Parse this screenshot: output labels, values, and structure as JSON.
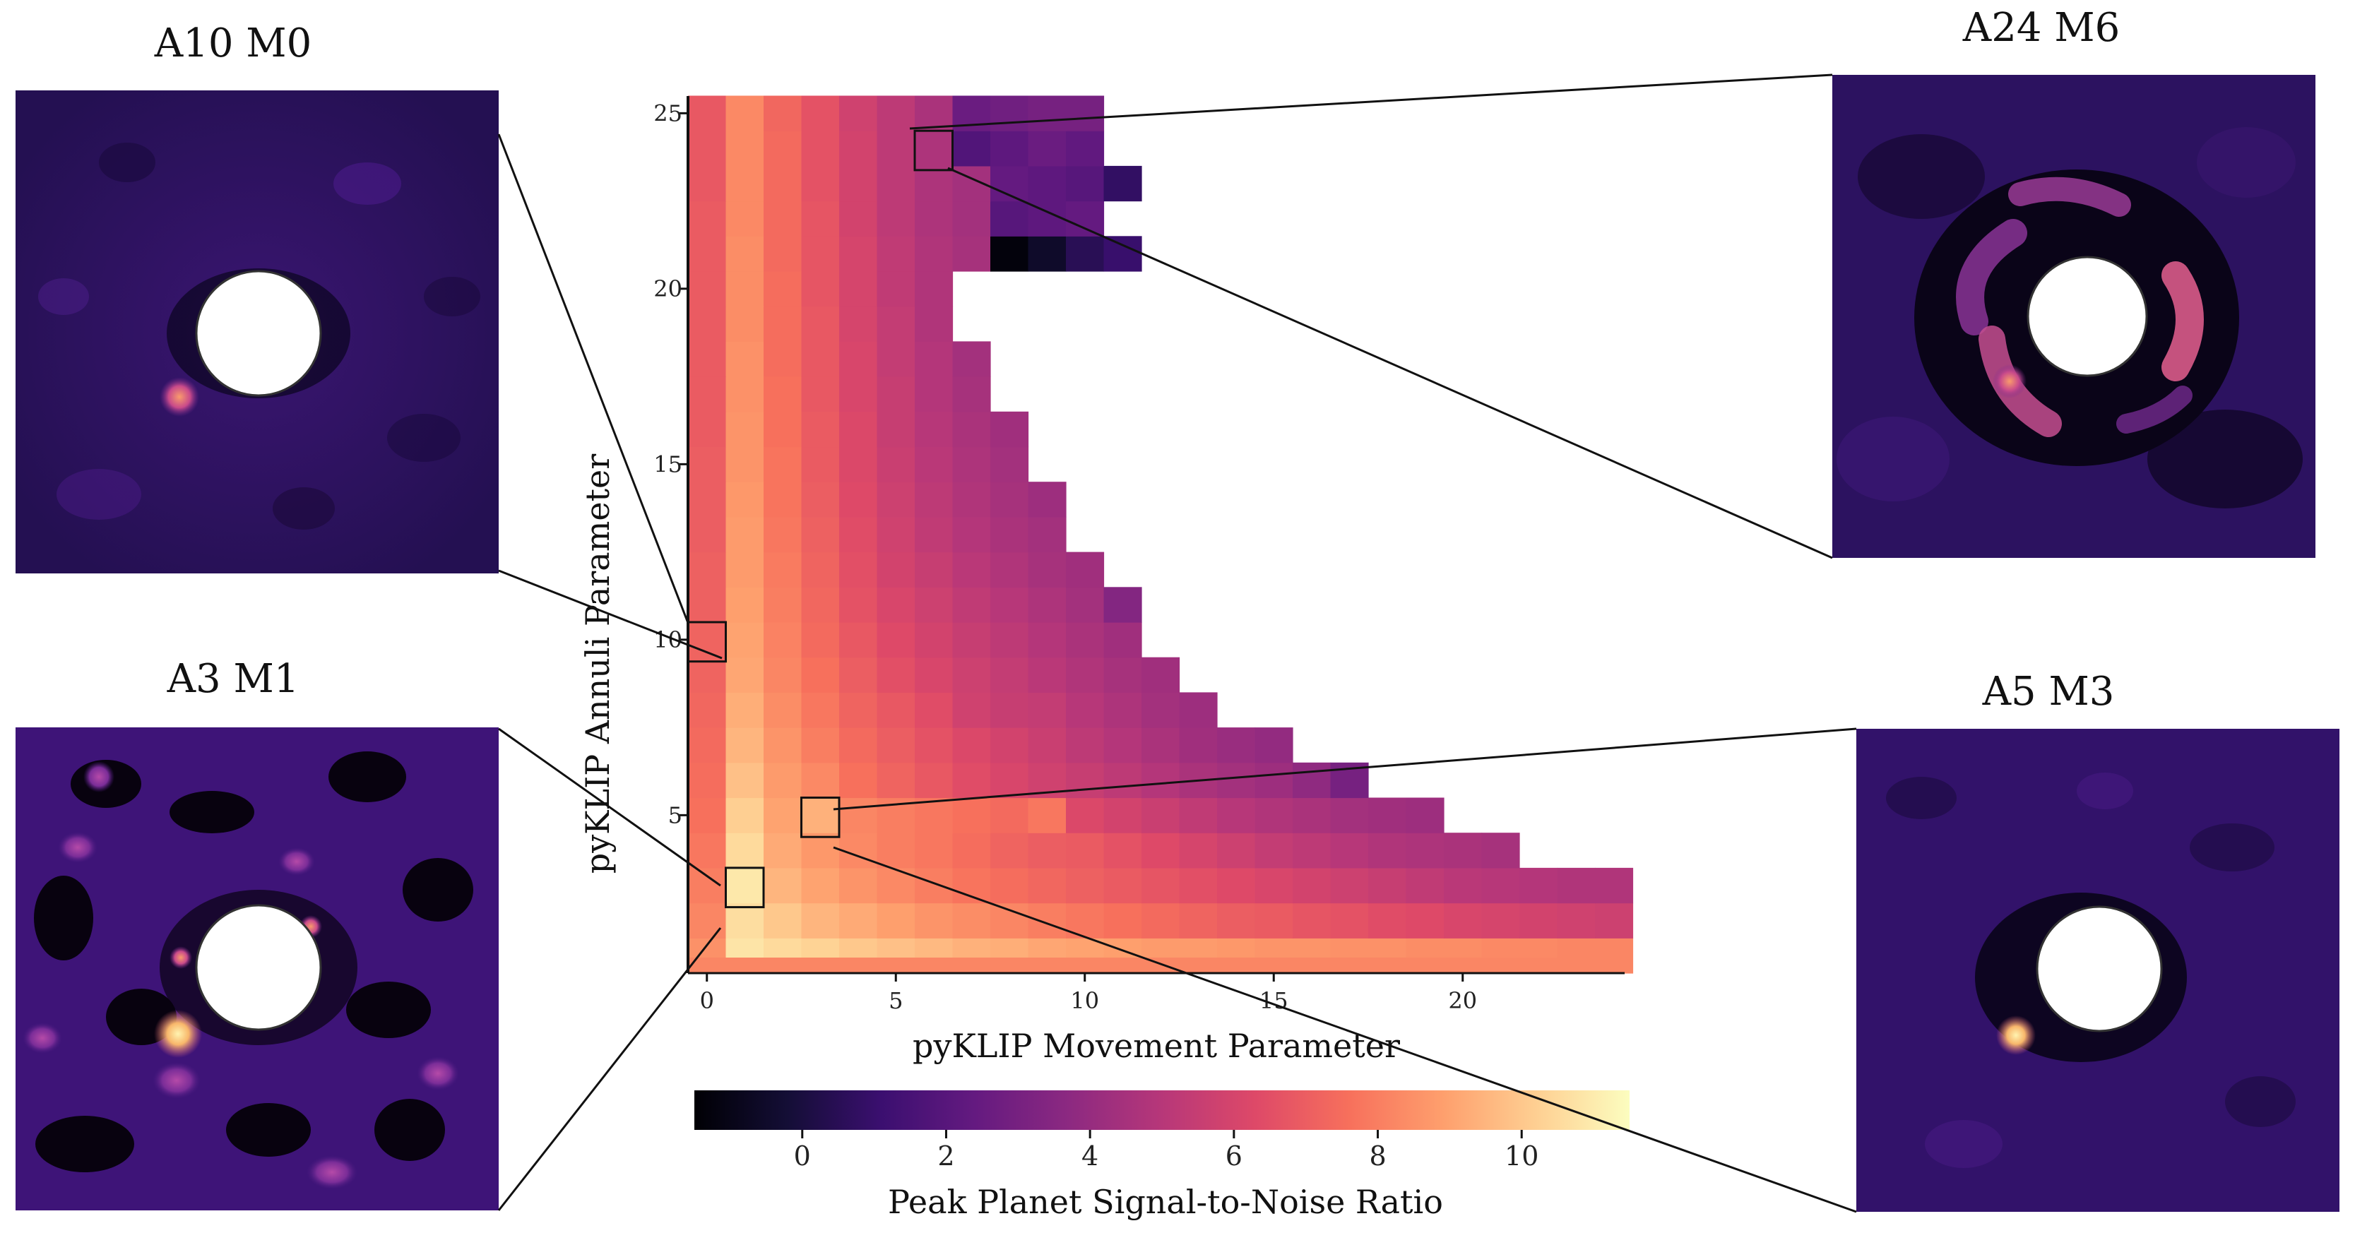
{
  "chart_data": {
    "type": "heatmap",
    "title": "",
    "xlabel": "pyKLIP Movement Parameter",
    "ylabel": "pyKLIP Annuli Parameter",
    "x_range": [
      0,
      24
    ],
    "y_range": [
      1,
      25
    ],
    "x_ticks": [
      "0",
      "5",
      "10",
      "15",
      "20"
    ],
    "y_ticks": [
      "5",
      "10",
      "15",
      "20",
      "25"
    ],
    "colorbar": {
      "label": "Peak Planet Signal-to-Noise Ratio",
      "range": [
        -1.5,
        11.5
      ],
      "ticks": [
        "0",
        "2",
        "4",
        "6",
        "8",
        "10"
      ]
    },
    "highlighted_cells": [
      {
        "annuli": 10,
        "movement": 0
      },
      {
        "annuli": 24,
        "movement": 6
      },
      {
        "annuli": 3,
        "movement": 1
      },
      {
        "annuli": 5,
        "movement": 3
      }
    ],
    "rows": [
      {
        "annuli": 1,
        "snr": [
          8.5,
          10.8,
          10.5,
          10.3,
          10.0,
          9.8,
          9.6,
          9.4,
          9.3,
          9.1,
          9.0,
          8.9,
          8.8,
          8.8,
          8.7,
          8.6,
          8.6,
          8.5,
          8.5,
          8.4,
          8.4,
          8.3,
          8.3,
          8.2,
          8.2
        ]
      },
      {
        "annuli": 2,
        "snr": [
          8.2,
          10.6,
          10.0,
          9.5,
          9.2,
          8.9,
          8.6,
          8.4,
          8.2,
          8.0,
          7.8,
          7.6,
          7.4,
          7.2,
          7.0,
          6.9,
          6.7,
          6.6,
          6.4,
          6.3,
          6.1,
          6.0,
          5.9,
          5.8,
          5.7
        ]
      },
      {
        "annuli": 3,
        "snr": [
          8.0,
          10.9,
          9.5,
          9.0,
          8.6,
          8.3,
          8.0,
          7.7,
          7.5,
          7.3,
          7.1,
          6.9,
          6.7,
          6.5,
          6.3,
          6.1,
          5.9,
          5.7,
          5.5,
          5.3,
          5.1,
          5.0,
          4.9,
          4.8,
          4.8
        ]
      },
      {
        "annuli": 4,
        "snr": [
          7.8,
          10.5,
          9.2,
          8.7,
          8.3,
          8.0,
          7.8,
          7.5,
          7.2,
          7.0,
          6.9,
          6.6,
          6.3,
          6.0,
          5.7,
          5.4,
          5.2,
          5.0,
          4.8,
          4.7,
          4.6,
          4.5,
          null,
          null,
          null
        ]
      },
      {
        "annuli": 5,
        "snr": [
          7.6,
          10.2,
          9.0,
          9.4,
          8.2,
          8.0,
          7.8,
          7.6,
          7.4,
          7.8,
          6.2,
          5.9,
          5.6,
          5.3,
          5.0,
          4.8,
          4.6,
          4.4,
          4.3,
          4.2,
          null,
          null,
          null,
          null,
          null
        ]
      },
      {
        "annuli": 6,
        "snr": [
          7.5,
          9.8,
          8.8,
          8.3,
          7.6,
          7.2,
          6.8,
          6.4,
          6.1,
          5.8,
          5.5,
          5.2,
          4.9,
          4.6,
          4.4,
          4.2,
          3.8,
          3.0,
          null,
          null,
          null,
          null,
          null,
          null,
          null
        ]
      },
      {
        "annuli": 7,
        "snr": [
          7.4,
          9.5,
          8.6,
          8.0,
          7.4,
          7.0,
          6.6,
          6.2,
          5.9,
          5.6,
          5.2,
          4.9,
          4.6,
          4.3,
          4.1,
          3.9,
          null,
          null,
          null,
          null,
          null,
          null,
          null,
          null,
          null
        ]
      },
      {
        "annuli": 8,
        "snr": [
          7.3,
          9.3,
          8.4,
          7.8,
          7.2,
          6.8,
          6.4,
          5.8,
          5.5,
          5.4,
          5.0,
          4.7,
          4.4,
          4.2,
          null,
          null,
          null,
          null,
          null,
          null,
          null,
          null,
          null,
          null,
          null
        ]
      },
      {
        "annuli": 9,
        "snr": [
          7.2,
          9.1,
          8.2,
          7.6,
          7.0,
          6.5,
          6.1,
          5.7,
          5.4,
          5.1,
          4.8,
          4.5,
          4.3,
          null,
          null,
          null,
          null,
          null,
          null,
          null,
          null,
          null,
          null,
          null,
          null
        ]
      },
      {
        "annuli": 10,
        "snr": [
          7.2,
          9.0,
          8.1,
          7.4,
          6.8,
          6.3,
          5.9,
          5.5,
          5.2,
          4.9,
          4.6,
          4.3,
          null,
          null,
          null,
          null,
          null,
          null,
          null,
          null,
          null,
          null,
          null,
          null,
          null
        ]
      },
      {
        "annuli": 11,
        "snr": [
          7.1,
          8.9,
          8.0,
          7.3,
          6.6,
          6.1,
          5.7,
          5.3,
          5.0,
          4.7,
          4.4,
          3.4,
          null,
          null,
          null,
          null,
          null,
          null,
          null,
          null,
          null,
          null,
          null,
          null,
          null
        ]
      },
      {
        "annuli": 12,
        "snr": [
          7.1,
          8.8,
          7.9,
          7.2,
          6.5,
          5.9,
          5.5,
          5.1,
          4.8,
          4.5,
          4.3,
          null,
          null,
          null,
          null,
          null,
          null,
          null,
          null,
          null,
          null,
          null,
          null,
          null,
          null
        ]
      },
      {
        "annuli": 13,
        "snr": [
          7.0,
          8.8,
          7.8,
          7.1,
          6.4,
          5.8,
          5.3,
          4.9,
          4.6,
          4.4,
          null,
          null,
          null,
          null,
          null,
          null,
          null,
          null,
          null,
          null,
          null,
          null,
          null,
          null,
          null
        ]
      },
      {
        "annuli": 14,
        "snr": [
          7.0,
          8.7,
          7.7,
          7.0,
          6.3,
          5.7,
          5.2,
          4.8,
          4.5,
          4.2,
          null,
          null,
          null,
          null,
          null,
          null,
          null,
          null,
          null,
          null,
          null,
          null,
          null,
          null,
          null
        ]
      },
      {
        "annuli": 15,
        "snr": [
          7.0,
          8.6,
          7.7,
          6.9,
          6.2,
          5.6,
          5.1,
          4.7,
          4.4,
          null,
          null,
          null,
          null,
          null,
          null,
          null,
          null,
          null,
          null,
          null,
          null,
          null,
          null,
          null,
          null
        ]
      },
      {
        "annuli": 16,
        "snr": [
          6.9,
          8.6,
          7.6,
          6.9,
          6.2,
          5.5,
          5.0,
          4.6,
          4.3,
          null,
          null,
          null,
          null,
          null,
          null,
          null,
          null,
          null,
          null,
          null,
          null,
          null,
          null,
          null,
          null
        ]
      },
      {
        "annuli": 17,
        "snr": [
          6.9,
          8.5,
          7.6,
          6.8,
          6.1,
          5.5,
          4.9,
          4.5,
          null,
          null,
          null,
          null,
          null,
          null,
          null,
          null,
          null,
          null,
          null,
          null,
          null,
          null,
          null,
          null,
          null
        ]
      },
      {
        "annuli": 18,
        "snr": [
          6.9,
          8.5,
          7.5,
          6.8,
          6.1,
          5.4,
          4.9,
          4.4,
          null,
          null,
          null,
          null,
          null,
          null,
          null,
          null,
          null,
          null,
          null,
          null,
          null,
          null,
          null,
          null,
          null
        ]
      },
      {
        "annuli": 19,
        "snr": [
          6.9,
          8.4,
          7.5,
          6.8,
          6.0,
          5.4,
          4.8,
          null,
          null,
          null,
          null,
          null,
          null,
          null,
          null,
          null,
          null,
          null,
          null,
          null,
          null,
          null,
          null,
          null,
          null
        ]
      },
      {
        "annuli": 20,
        "snr": [
          6.9,
          8.4,
          7.5,
          6.7,
          6.0,
          5.3,
          4.8,
          null,
          null,
          null,
          null,
          null,
          null,
          null,
          null,
          null,
          null,
          null,
          null,
          null,
          null,
          null,
          null,
          null,
          null
        ]
      },
      {
        "annuli": 21,
        "snr": [
          6.9,
          8.4,
          7.4,
          6.7,
          6.0,
          5.3,
          4.8,
          4.5,
          -1.3,
          -0.5,
          0.5,
          1.0,
          null,
          null,
          null,
          null,
          null,
          null,
          null,
          null,
          null,
          null,
          null,
          null,
          null
        ]
      },
      {
        "annuli": 22,
        "snr": [
          6.9,
          8.3,
          7.4,
          6.7,
          5.9,
          5.2,
          4.7,
          4.4,
          2.0,
          2.2,
          2.4,
          null,
          null,
          null,
          null,
          null,
          null,
          null,
          null,
          null,
          null,
          null,
          null,
          null,
          null
        ]
      },
      {
        "annuli": 23,
        "snr": [
          6.8,
          8.3,
          7.4,
          6.6,
          5.9,
          5.2,
          4.7,
          4.4,
          2.4,
          2.2,
          2.0,
          0.8,
          null,
          null,
          null,
          null,
          null,
          null,
          null,
          null,
          null,
          null,
          null,
          null,
          null
        ]
      },
      {
        "annuli": 24,
        "snr": [
          6.8,
          8.3,
          7.4,
          6.6,
          5.9,
          5.2,
          4.7,
          1.8,
          2.2,
          2.6,
          2.3,
          null,
          null,
          null,
          null,
          null,
          null,
          null,
          null,
          null,
          null,
          null,
          null,
          null,
          null
        ]
      },
      {
        "annuli": 25,
        "snr": [
          6.8,
          8.3,
          7.3,
          6.6,
          5.8,
          5.2,
          4.6,
          2.6,
          2.8,
          3.0,
          3.0,
          null,
          null,
          null,
          null,
          null,
          null,
          null,
          null,
          null,
          null,
          null,
          null,
          null,
          null
        ]
      }
    ]
  },
  "panels": {
    "a10m0": {
      "title": "A10 M0",
      "cell": {
        "annuli": 10,
        "movement": 0
      }
    },
    "a24m6": {
      "title": "A24 M6",
      "cell": {
        "annuli": 24,
        "movement": 6
      }
    },
    "a3m1": {
      "title": "A3 M1",
      "cell": {
        "annuli": 3,
        "movement": 1
      }
    },
    "a5m3": {
      "title": "A5 M3",
      "cell": {
        "annuli": 5,
        "movement": 3
      }
    }
  }
}
